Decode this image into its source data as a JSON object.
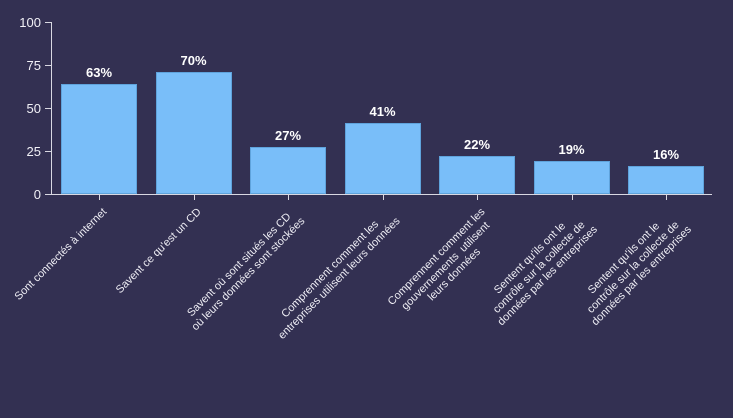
{
  "chart_data": {
    "type": "bar",
    "title": "",
    "xlabel": "",
    "ylabel": "",
    "categories": [
      [
        "Sont connectés à internet"
      ],
      [
        "Savent ce qu'est un CD"
      ],
      [
        "Savent où sont situés les CD",
        "où leurs données sont stockées"
      ],
      [
        "Comprennent comment les",
        "entreprises utilisent leurs données"
      ],
      [
        "Comprennent comment les",
        "gouvernements  utilisent",
        "leurs données"
      ],
      [
        "Sentent qu'ils ont le",
        "contrôle sur la collecte de",
        "données par les entreprises"
      ],
      [
        "Sentent qu'ils ont le",
        "contrôle sur la collecte de",
        "données par les entreprises"
      ]
    ],
    "values": [
      63,
      70,
      27,
      41,
      22,
      19,
      16
    ],
    "value_labels": [
      "63%",
      "70%",
      "27%",
      "41%",
      "22%",
      "19%",
      "16%"
    ],
    "ylim": [
      0,
      100
    ],
    "yticks": [
      0,
      25,
      50,
      75,
      100
    ],
    "grid": false,
    "legend": false,
    "colors": {
      "background": "#333052",
      "bar_fill": "#79bef9",
      "bar_border": "#5fa3dc",
      "axis": "#d9d8e2",
      "tick_label": "#f2f1f7",
      "value_label": "#ffffff",
      "x_label": "#eeedf4"
    }
  }
}
